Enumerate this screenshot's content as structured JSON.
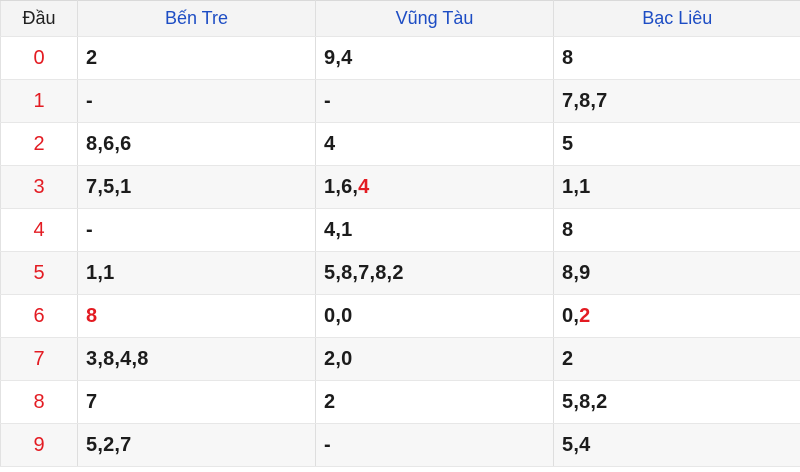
{
  "colors": {
    "accent_red": "#e31b22",
    "header_blue": "#1d4dc4",
    "header_bg": "#f4f4f4",
    "stripe_bg": "#f7f7f7"
  },
  "table": {
    "header": {
      "corner": "Đầu",
      "columns": [
        "Bến Tre",
        "Vũng Tàu",
        "Bạc Liêu"
      ]
    },
    "rows": [
      {
        "digit": "0",
        "cells": [
          [
            {
              "t": "2"
            }
          ],
          [
            {
              "t": "9,4"
            }
          ],
          [
            {
              "t": "8"
            }
          ]
        ]
      },
      {
        "digit": "1",
        "cells": [
          [
            {
              "t": "-"
            }
          ],
          [
            {
              "t": "-"
            }
          ],
          [
            {
              "t": "7,8,7"
            }
          ]
        ]
      },
      {
        "digit": "2",
        "cells": [
          [
            {
              "t": "8,6,6"
            }
          ],
          [
            {
              "t": "4"
            }
          ],
          [
            {
              "t": "5"
            }
          ]
        ]
      },
      {
        "digit": "3",
        "cells": [
          [
            {
              "t": "7,5,1"
            }
          ],
          [
            {
              "t": "1,6,"
            },
            {
              "t": "4",
              "red": true
            }
          ],
          [
            {
              "t": "1,1"
            }
          ]
        ]
      },
      {
        "digit": "4",
        "cells": [
          [
            {
              "t": "-"
            }
          ],
          [
            {
              "t": "4,1"
            }
          ],
          [
            {
              "t": "8"
            }
          ]
        ]
      },
      {
        "digit": "5",
        "cells": [
          [
            {
              "t": "1,1"
            }
          ],
          [
            {
              "t": "5,8,7,8,2"
            }
          ],
          [
            {
              "t": "8,9"
            }
          ]
        ]
      },
      {
        "digit": "6",
        "cells": [
          [
            {
              "t": "8",
              "red": true
            }
          ],
          [
            {
              "t": "0,0"
            }
          ],
          [
            {
              "t": "0,"
            },
            {
              "t": "2",
              "red": true
            }
          ]
        ]
      },
      {
        "digit": "7",
        "cells": [
          [
            {
              "t": "3,8,4,8"
            }
          ],
          [
            {
              "t": "2,0"
            }
          ],
          [
            {
              "t": "2"
            }
          ]
        ]
      },
      {
        "digit": "8",
        "cells": [
          [
            {
              "t": "7"
            }
          ],
          [
            {
              "t": "2"
            }
          ],
          [
            {
              "t": "5,8,2"
            }
          ]
        ]
      },
      {
        "digit": "9",
        "cells": [
          [
            {
              "t": "5,2,7"
            }
          ],
          [
            {
              "t": "-"
            }
          ],
          [
            {
              "t": "5,4"
            }
          ]
        ]
      }
    ]
  }
}
